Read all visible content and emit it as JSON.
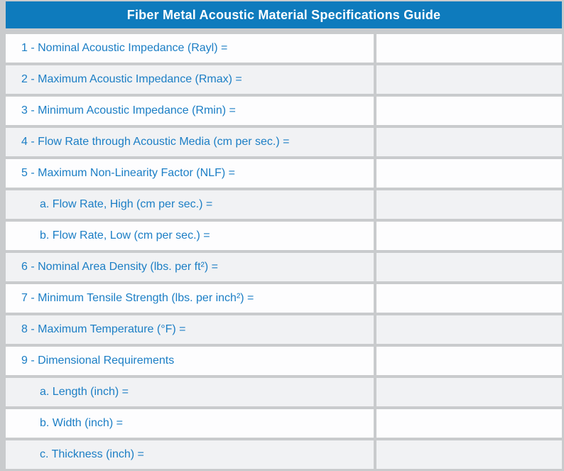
{
  "header": {
    "title": "Fiber Metal Acoustic Material Specifications Guide"
  },
  "colors": {
    "header_background": "#0e7bbd",
    "header_text": "#ffffff",
    "label_text": "#1b7ec5",
    "row_white": "#fdfdfe",
    "row_shaded": "#f1f2f4",
    "grid_divider": "#c9cbcd"
  },
  "table": {
    "columns": [
      "specification",
      "value"
    ],
    "rows": [
      {
        "label": "1 - Nominal Acoustic Impedance (Rayl) =",
        "level": "main",
        "value": ""
      },
      {
        "label": "2 - Maximum Acoustic Impedance (Rmax) =",
        "level": "main",
        "value": ""
      },
      {
        "label": "3 - Minimum Acoustic Impedance (Rmin) =",
        "level": "main",
        "value": ""
      },
      {
        "label": "4 - Flow Rate through Acoustic Media (cm per sec.) =",
        "level": "main",
        "value": ""
      },
      {
        "label": "5 - Maximum Non-Linearity Factor (NLF) =",
        "level": "main",
        "value": ""
      },
      {
        "label": "a. Flow Rate, High (cm per sec.) =",
        "level": "sub",
        "value": ""
      },
      {
        "label": "b. Flow Rate, Low (cm per sec.) =",
        "level": "sub",
        "value": ""
      },
      {
        "label": "6 - Nominal Area Density (lbs. per ft²) =",
        "level": "main",
        "value": ""
      },
      {
        "label": "7 - Minimum Tensile Strength (lbs. per inch²) =",
        "level": "main",
        "value": ""
      },
      {
        "label": "8 - Maximum Temperature (°F) =",
        "level": "main",
        "value": ""
      },
      {
        "label": "9 - Dimensional Requirements",
        "level": "main",
        "value": ""
      },
      {
        "label": "a. Length (inch) =",
        "level": "sub",
        "value": ""
      },
      {
        "label": "b. Width (inch) =",
        "level": "sub",
        "value": ""
      },
      {
        "label": "c. Thickness (inch) =",
        "level": "sub",
        "value": ""
      }
    ]
  }
}
